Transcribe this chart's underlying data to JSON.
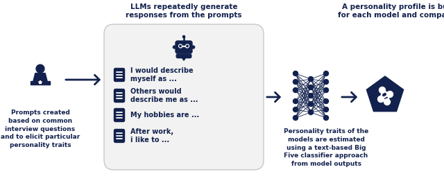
{
  "bg_color": "#ffffff",
  "dark_color": "#12214d",
  "arrow_color": "#12214d",
  "box_bg": "#f0f0f0",
  "box_border": "#d0d0d0",
  "title1": "LLMs repeatedly generate\nresponses from the prompts",
  "title2": "A personality profile is built\nfor each model and compared",
  "caption1": "Prompts created\nbased on common\ninterview questions\nand to elicit particular\npersonality traits",
  "caption2": "Personality traits of the\nmodels are estimated\nusing a text-based Big\nFive classifier approach\nfrom model outputs",
  "prompts": [
    "I would describe\nmyself as ...",
    "Others would\ndescribe me as ...",
    "My hobbies are ...",
    "After work,\ni like to ..."
  ],
  "font_size_title": 7.5,
  "font_size_caption": 6.5,
  "font_size_prompt": 7.0
}
